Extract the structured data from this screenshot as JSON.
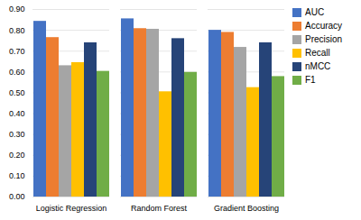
{
  "chart_data": {
    "type": "bar",
    "categories": [
      "Logistic Regression",
      "Random Forest",
      "Gradient Boosting"
    ],
    "series": [
      {
        "name": "AUC",
        "color": "#4472C4",
        "values": [
          0.843,
          0.855,
          0.8
        ]
      },
      {
        "name": "Accuracy",
        "color": "#ED7D31",
        "values": [
          0.765,
          0.808,
          0.79
        ]
      },
      {
        "name": "Precision",
        "color": "#A5A5A5",
        "values": [
          0.63,
          0.805,
          0.718
        ]
      },
      {
        "name": "Recall",
        "color": "#FFC000",
        "values": [
          0.645,
          0.505,
          0.525
        ]
      },
      {
        "name": "nMCC",
        "color": "#264478",
        "values": [
          0.74,
          0.76,
          0.74
        ]
      },
      {
        "name": "F1",
        "color": "#70AD47",
        "values": [
          0.603,
          0.598,
          0.578
        ]
      }
    ],
    "ylim": [
      0.0,
      0.9
    ],
    "yticks": [
      {
        "value": 0.0,
        "label": "0.00"
      },
      {
        "value": 0.1,
        "label": "0.10"
      },
      {
        "value": 0.2,
        "label": "0.20"
      },
      {
        "value": 0.3,
        "label": "0.30"
      },
      {
        "value": 0.4,
        "label": "0.40"
      },
      {
        "value": 0.5,
        "label": "0.50"
      },
      {
        "value": 0.6,
        "label": "0.60"
      },
      {
        "value": 0.7,
        "label": "0.70"
      },
      {
        "value": 0.8,
        "label": "0.80"
      },
      {
        "value": 0.9,
        "label": "0.90"
      }
    ],
    "grid": true,
    "legend": "right"
  }
}
